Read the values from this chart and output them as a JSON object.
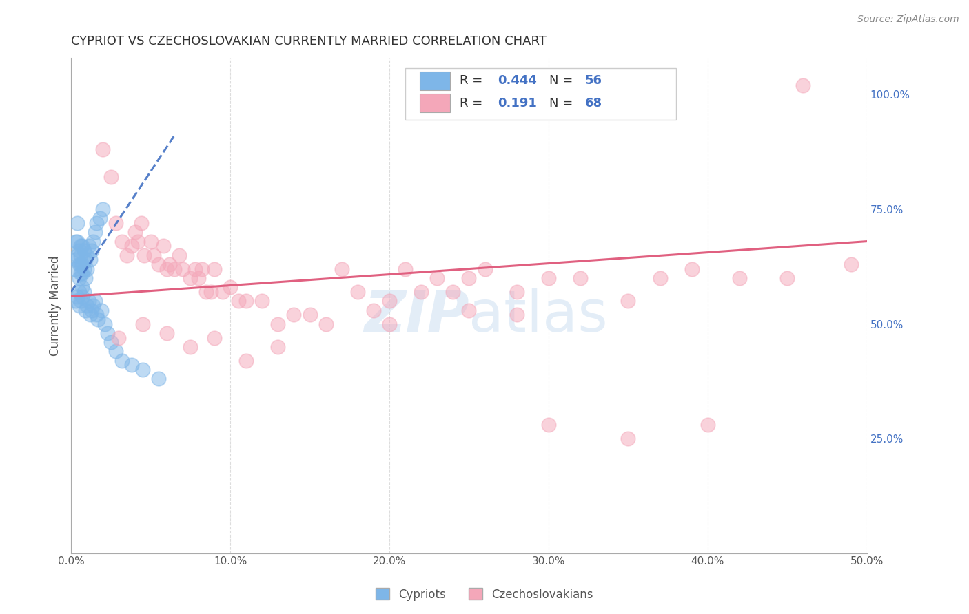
{
  "title": "CYPRIOT VS CZECHOSLOVAKIAN CURRENTLY MARRIED CORRELATION CHART",
  "source": "Source: ZipAtlas.com",
  "xlabel_ticks": [
    "0.0%",
    "10.0%",
    "20.0%",
    "30.0%",
    "40.0%",
    "50.0%"
  ],
  "xlabel_vals": [
    0.0,
    0.1,
    0.2,
    0.3,
    0.4,
    0.5
  ],
  "ylabel": "Currently Married",
  "ylabel_ticks_right": [
    "100.0%",
    "75.0%",
    "50.0%",
    "25.0%"
  ],
  "ylabel_vals_right": [
    1.0,
    0.75,
    0.5,
    0.25
  ],
  "xlim": [
    0.0,
    0.5
  ],
  "ylim": [
    0.0,
    1.1
  ],
  "cypriot_R": "0.444",
  "cypriot_N": "56",
  "czech_R": "0.191",
  "czech_N": "68",
  "cypriot_color": "#7EB6E8",
  "cypriot_line_color": "#4472C4",
  "czech_color": "#F4A7B9",
  "czech_line_color": "#E06080",
  "watermark_part1": "ZIP",
  "watermark_part2": "atlas",
  "background_color": "#FFFFFF",
  "grid_color": "#DDDDDD",
  "cypriot_x": [
    0.002,
    0.003,
    0.003,
    0.004,
    0.004,
    0.004,
    0.005,
    0.005,
    0.005,
    0.006,
    0.006,
    0.006,
    0.006,
    0.007,
    0.007,
    0.007,
    0.008,
    0.008,
    0.009,
    0.009,
    0.01,
    0.01,
    0.011,
    0.012,
    0.013,
    0.014,
    0.015,
    0.016,
    0.018,
    0.02,
    0.003,
    0.004,
    0.005,
    0.005,
    0.006,
    0.007,
    0.007,
    0.008,
    0.009,
    0.01,
    0.011,
    0.012,
    0.013,
    0.014,
    0.015,
    0.016,
    0.017,
    0.019,
    0.021,
    0.023,
    0.025,
    0.028,
    0.032,
    0.038,
    0.045,
    0.055
  ],
  "cypriot_y": [
    0.62,
    0.64,
    0.68,
    0.65,
    0.68,
    0.72,
    0.6,
    0.63,
    0.66,
    0.61,
    0.63,
    0.65,
    0.67,
    0.61,
    0.63,
    0.67,
    0.62,
    0.66,
    0.6,
    0.64,
    0.62,
    0.65,
    0.67,
    0.64,
    0.66,
    0.68,
    0.7,
    0.72,
    0.73,
    0.75,
    0.55,
    0.56,
    0.54,
    0.57,
    0.55,
    0.56,
    0.58,
    0.57,
    0.53,
    0.54,
    0.55,
    0.52,
    0.53,
    0.54,
    0.55,
    0.52,
    0.51,
    0.53,
    0.5,
    0.48,
    0.46,
    0.44,
    0.42,
    0.41,
    0.4,
    0.38
  ],
  "czech_x": [
    0.02,
    0.025,
    0.028,
    0.032,
    0.035,
    0.038,
    0.04,
    0.042,
    0.044,
    0.046,
    0.05,
    0.052,
    0.055,
    0.058,
    0.06,
    0.062,
    0.065,
    0.068,
    0.07,
    0.075,
    0.078,
    0.08,
    0.082,
    0.085,
    0.088,
    0.09,
    0.095,
    0.1,
    0.105,
    0.11,
    0.12,
    0.13,
    0.14,
    0.15,
    0.16,
    0.17,
    0.18,
    0.19,
    0.2,
    0.21,
    0.22,
    0.23,
    0.24,
    0.25,
    0.26,
    0.28,
    0.3,
    0.32,
    0.35,
    0.37,
    0.39,
    0.42,
    0.46,
    0.03,
    0.045,
    0.06,
    0.075,
    0.09,
    0.11,
    0.13,
    0.3,
    0.35,
    0.4,
    0.45,
    0.49,
    0.2,
    0.25,
    0.28
  ],
  "czech_y": [
    0.88,
    0.82,
    0.72,
    0.68,
    0.65,
    0.67,
    0.7,
    0.68,
    0.72,
    0.65,
    0.68,
    0.65,
    0.63,
    0.67,
    0.62,
    0.63,
    0.62,
    0.65,
    0.62,
    0.6,
    0.62,
    0.6,
    0.62,
    0.57,
    0.57,
    0.62,
    0.57,
    0.58,
    0.55,
    0.55,
    0.55,
    0.5,
    0.52,
    0.52,
    0.5,
    0.62,
    0.57,
    0.53,
    0.55,
    0.62,
    0.57,
    0.6,
    0.57,
    0.6,
    0.62,
    0.57,
    0.6,
    0.6,
    0.55,
    0.6,
    0.62,
    0.6,
    1.02,
    0.47,
    0.5,
    0.48,
    0.45,
    0.47,
    0.42,
    0.45,
    0.28,
    0.25,
    0.28,
    0.6,
    0.63,
    0.5,
    0.53,
    0.52
  ]
}
